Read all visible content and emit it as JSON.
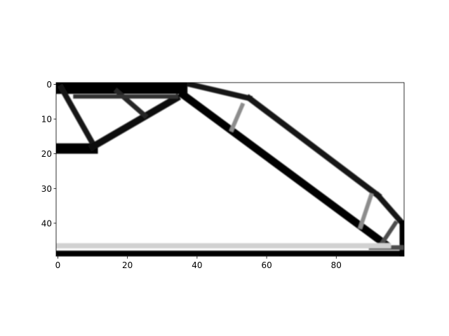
{
  "chart_data": {
    "type": "heatmap",
    "colormap": "gray_r",
    "xlim": [
      -0.5,
      99.5
    ],
    "ylim": [
      49.5,
      -0.5
    ],
    "x_ticks": [
      0,
      20,
      40,
      60,
      80
    ],
    "y_ticks": [
      0,
      10,
      20,
      30,
      40
    ],
    "x_tick_labels": [
      "0",
      "20",
      "40",
      "60",
      "80"
    ],
    "y_tick_labels": [
      "0",
      "10",
      "20",
      "30",
      "40"
    ],
    "grid": false,
    "members": [
      {
        "from": [
          0,
          0.5
        ],
        "to": [
          35,
          0.5
        ],
        "density": 1.0,
        "thickness": 4.5
      },
      {
        "from": [
          -1,
          18.5
        ],
        "to": [
          10,
          18.5
        ],
        "density": 1.0,
        "thickness": 3
      },
      {
        "from": [
          1,
          1
        ],
        "to": [
          10,
          17
        ],
        "density": 0.9,
        "thickness": 1.6
      },
      {
        "from": [
          10,
          18
        ],
        "to": [
          34,
          4
        ],
        "density": 0.95,
        "thickness": 2
      },
      {
        "from": [
          17,
          2
        ],
        "to": [
          25,
          9
        ],
        "density": 0.85,
        "thickness": 1.4
      },
      {
        "from": [
          5,
          3.5
        ],
        "to": [
          34,
          3.5
        ],
        "density": 0.8,
        "thickness": 1.2
      },
      {
        "from": [
          36,
          3
        ],
        "to": [
          94,
          46
        ],
        "density": 1.0,
        "thickness": 2.2
      },
      {
        "from": [
          38,
          0
        ],
        "to": [
          55,
          4
        ],
        "density": 0.9,
        "thickness": 1.6
      },
      {
        "from": [
          55,
          4
        ],
        "to": [
          92,
          32
        ],
        "density": 0.9,
        "thickness": 1.7
      },
      {
        "from": [
          92,
          32
        ],
        "to": [
          99,
          40
        ],
        "density": 0.9,
        "thickness": 1.6
      },
      {
        "from": [
          53,
          6
        ],
        "to": [
          50,
          13
        ],
        "density": 0.45,
        "thickness": 1.2
      },
      {
        "from": [
          90,
          32
        ],
        "to": [
          87,
          41
        ],
        "density": 0.45,
        "thickness": 1.2
      },
      {
        "from": [
          97,
          40
        ],
        "to": [
          93,
          46
        ],
        "density": 0.7,
        "thickness": 1.2
      },
      {
        "from": [
          99,
          40
        ],
        "to": [
          99,
          49
        ],
        "density": 1.0,
        "thickness": 1.6
      },
      {
        "from": [
          90,
          47
        ],
        "to": [
          99,
          47
        ],
        "density": 0.7,
        "thickness": 1.3
      },
      {
        "from": [
          0,
          48.7
        ],
        "to": [
          99,
          48.7
        ],
        "density": 1.0,
        "thickness": 1.6
      },
      {
        "from": [
          0,
          46.5
        ],
        "to": [
          95,
          46.5
        ],
        "density": 0.18,
        "thickness": 1.5
      }
    ]
  }
}
